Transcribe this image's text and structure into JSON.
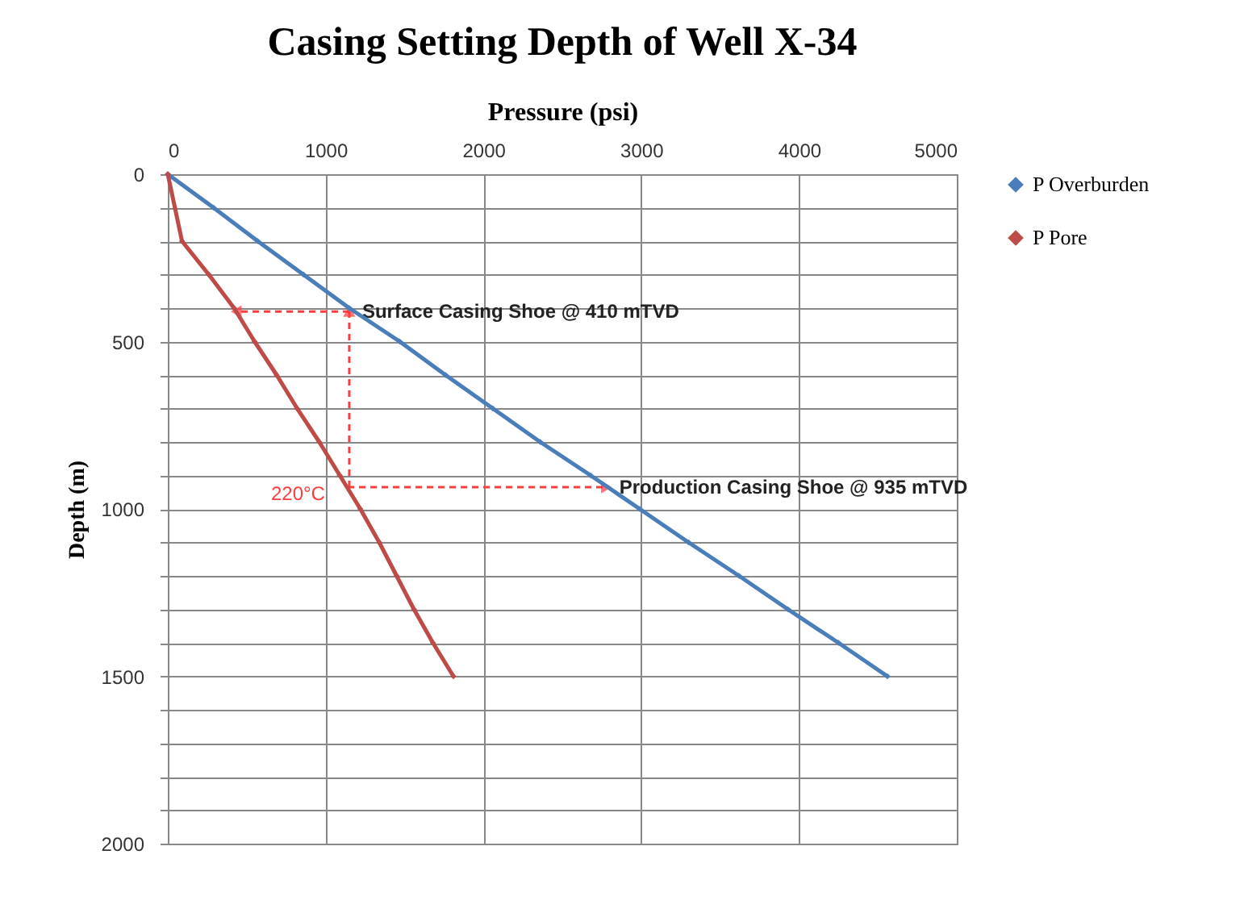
{
  "chart_data": {
    "type": "line",
    "title": "Casing Setting Depth of Well X-34",
    "xlabel": "Pressure (psi)",
    "ylabel": "Depth (m)",
    "xlim": [
      0,
      5000
    ],
    "xticks": [
      0,
      1000,
      2000,
      3000,
      4000,
      5000
    ],
    "ylim": [
      2000,
      0
    ],
    "yticks": [
      0,
      {
        "value": 100,
        "label": null
      },
      {
        "value": 200,
        "label": null
      },
      {
        "value": 300,
        "label": null
      },
      {
        "value": 400,
        "label": null
      },
      500,
      {
        "value": 600,
        "label": null
      },
      {
        "value": 700,
        "label": null
      },
      {
        "value": 800,
        "label": null
      },
      {
        "value": 900,
        "label": null
      },
      1000,
      {
        "value": 1100,
        "label": null
      },
      {
        "value": 1200,
        "label": null
      },
      {
        "value": 1300,
        "label": null
      },
      {
        "value": 1400,
        "label": null
      },
      1500,
      {
        "value": 1600,
        "label": null
      },
      {
        "value": 1700,
        "label": null
      },
      {
        "value": 1800,
        "label": null
      },
      {
        "value": 1900,
        "label": null
      },
      2000
    ],
    "grid": true,
    "legend": "right",
    "marker": "diamond",
    "line_style": "solid",
    "series": [
      {
        "name": "P Overburden",
        "color": "#4a7ebb",
        "x": [
          0,
          290,
          570,
          860,
          1150,
          1470,
          1760,
          2060,
          2360,
          2680,
          2990,
          3300,
          3620,
          3930,
          4250,
          4560
        ],
        "values": [
          0,
          100,
          200,
          300,
          400,
          500,
          600,
          700,
          800,
          900,
          1000,
          1100,
          1200,
          1300,
          1400,
          1500
        ]
      },
      {
        "name": "P Pore",
        "color": "#be4b48",
        "x": [
          0,
          90,
          260,
          420,
          550,
          690,
          820,
          960,
          1090,
          1220,
          1340,
          1450,
          1560,
          1680,
          1810
        ],
        "values": [
          0,
          200,
          300,
          400,
          500,
          600,
          700,
          800,
          900,
          1000,
          1100,
          1200,
          1300,
          1400,
          1500
        ]
      }
    ],
    "annotations": [
      {
        "text": "Surface Casing Shoe @ 410 mTVD",
        "x": 1150,
        "y": 410
      },
      {
        "text": "220°C",
        "x": 1140,
        "y": 935
      },
      {
        "text": "Production Casing Shoe @ 935 mTVD",
        "x": 2780,
        "y": 935
      }
    ]
  }
}
